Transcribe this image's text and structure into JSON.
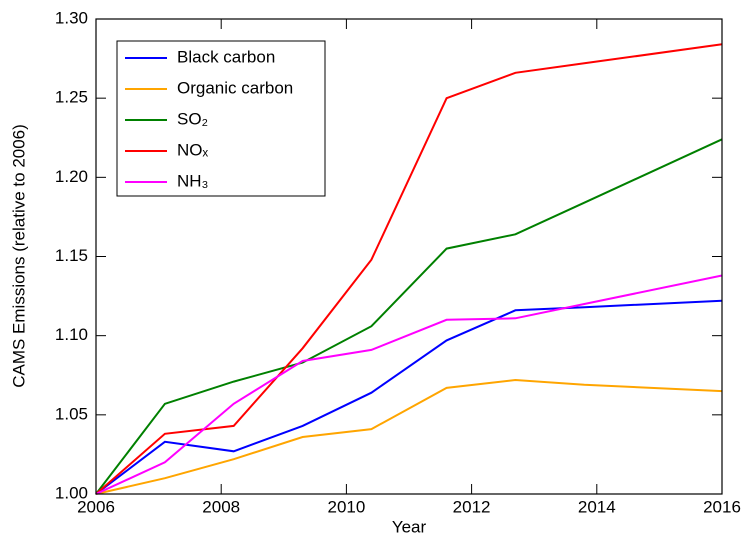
{
  "chart_data": {
    "type": "line",
    "x_label": "Year",
    "y_label": "CAMS Emissions (relative to 2006)",
    "x": [
      2006,
      2007.1,
      2008.2,
      2009.3,
      2010.4,
      2011.6,
      2012.7,
      2013.8,
      2016
    ],
    "series": [
      {
        "name": "Black carbon",
        "color": "#0000ff",
        "values": [
          1.0,
          1.033,
          1.027,
          1.043,
          1.064,
          1.097,
          1.116,
          1.118,
          1.122
        ]
      },
      {
        "name": "Organic carbon",
        "color": "#ffa500",
        "values": [
          1.0,
          1.01,
          1.022,
          1.036,
          1.041,
          1.067,
          1.072,
          1.069,
          1.065
        ]
      },
      {
        "name": "SO₂",
        "color": "#008000",
        "values": [
          1.0,
          1.057,
          1.071,
          1.083,
          1.106,
          1.155,
          1.164,
          1.184,
          1.224
        ]
      },
      {
        "name": "NOₓ",
        "color": "#ff0000",
        "values": [
          1.0,
          1.038,
          1.043,
          1.092,
          1.148,
          1.25,
          1.266,
          1.272,
          1.284
        ]
      },
      {
        "name": "NH₃",
        "color": "#ff00ff",
        "values": [
          1.0,
          1.02,
          1.057,
          1.084,
          1.091,
          1.11,
          1.111,
          1.12,
          1.138
        ]
      }
    ],
    "xlim": [
      2006,
      2016
    ],
    "xticks": [
      2006,
      2008,
      2010,
      2012,
      2014,
      2016
    ],
    "ylim": [
      1.0,
      1.3
    ],
    "yticks": [
      {
        "value": 1.0,
        "label": "1.00"
      },
      {
        "value": 1.05,
        "label": "1.05"
      },
      {
        "value": 1.1,
        "label": "1.10"
      },
      {
        "value": 1.15,
        "label": "1.15"
      },
      {
        "value": 1.2,
        "label": "1.20"
      },
      {
        "value": 1.25,
        "label": "1.25"
      },
      {
        "value": 1.3,
        "label": "1.30"
      }
    ],
    "legend": "upper-left"
  }
}
